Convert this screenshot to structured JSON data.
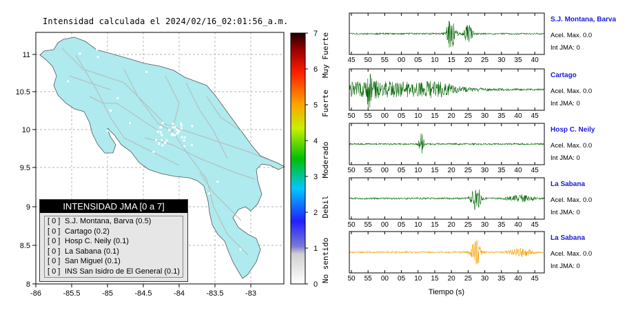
{
  "map": {
    "title": "Intensidad calculada el 2024/02/16_02:01:56_a.m.",
    "x_ticks": [
      "-86",
      "-85.5",
      "-85",
      "-84.5",
      "-84",
      "-83.5",
      "-83"
    ],
    "y_ticks": [
      "11",
      "10.5",
      "10",
      "9.5",
      "9",
      "8.5",
      "8"
    ],
    "land_color": "#aeeaee"
  },
  "legend": {
    "title": "INTENSIDAD JMA [0 a 7]",
    "items": [
      {
        "level": "[ 0 ]",
        "text": "S.J. Montana, Barva (0.5)"
      },
      {
        "level": "[ 0 ]",
        "text": "Cartago (0.2)"
      },
      {
        "level": "[ 0 ]",
        "text": "Hosp C. Neily (0.1)"
      },
      {
        "level": "[ 0 ]",
        "text": "La Sabana (0.1)"
      },
      {
        "level": "[ 0 ]",
        "text": "San Miguel (0.1)"
      },
      {
        "level": "[ 0 ]",
        "text": "INS San Isidro de El General (0.1)"
      }
    ]
  },
  "colorbar": {
    "ticks": [
      "0",
      "1",
      "2",
      "3",
      "4",
      "5",
      "6",
      "7"
    ],
    "labels": [
      "No sentido",
      "Debil",
      "Moderado",
      "Fuerte",
      "Muy Fuerte"
    ]
  },
  "seismograms": {
    "xlabel": "Tiempo (s)",
    "stations": [
      {
        "name": "S.J. Montana, Barva",
        "acel": "Acel. Max. 0.0",
        "int": "Int JMA: 0",
        "color": "#006400",
        "ticks": [
          "45",
          "50",
          "55",
          "00",
          "05",
          "10",
          "15",
          "20",
          "25",
          "30",
          "35",
          "40"
        ]
      },
      {
        "name": "Cartago",
        "acel": "Acel. Max. 0.0",
        "int": "Int JMA: 0",
        "color": "#006400",
        "ticks": [
          "50",
          "55",
          "00",
          "05",
          "10",
          "15",
          "20",
          "25",
          "30",
          "35",
          "40",
          "45"
        ]
      },
      {
        "name": "Hosp C. Neily",
        "acel": "Acel. Max. 0.0",
        "int": "Int JMA: 0",
        "color": "#006400",
        "ticks": [
          "50",
          "55",
          "00",
          "05",
          "10",
          "15",
          "20",
          "25",
          "30",
          "35",
          "40",
          "45"
        ]
      },
      {
        "name": "La Sabana",
        "acel": "Acel. Max. 0.0",
        "int": "Int JMA: 0",
        "color": "#006400",
        "ticks": [
          "50",
          "55",
          "00",
          "05",
          "10",
          "15",
          "20",
          "25",
          "30",
          "35",
          "40",
          "45"
        ]
      },
      {
        "name": "La Sabana",
        "acel": "Acel. Max. 0.0",
        "int": "Int JMA: 0",
        "color": "#f0a000",
        "ticks": [
          "50",
          "55",
          "00",
          "05",
          "10",
          "15",
          "20",
          "25",
          "30",
          "35",
          "40",
          "45"
        ]
      }
    ]
  },
  "chart_data": [
    {
      "type": "scatter",
      "title": "Intensidad calculada el 2024/02/16_02:01:56_a.m.",
      "xlim": [
        -86,
        -82.6
      ],
      "ylim": [
        8,
        11.3
      ],
      "grid": true,
      "legend_position": "bottom-left"
    },
    {
      "type": "line",
      "xlabel": "Tiempo (s)",
      "series": [
        {
          "name": "S.J. Montana, Barva",
          "peak_time_labels": [
            "15",
            "20"
          ]
        },
        {
          "name": "Cartago",
          "peak_time_labels": [
            "55"
          ]
        },
        {
          "name": "Hosp C. Neily",
          "peak_time_labels": [
            "10"
          ]
        },
        {
          "name": "La Sabana",
          "peak_time_labels": [
            "27"
          ]
        },
        {
          "name": "La Sabana",
          "peak_time_labels": [
            "27"
          ]
        }
      ]
    }
  ]
}
